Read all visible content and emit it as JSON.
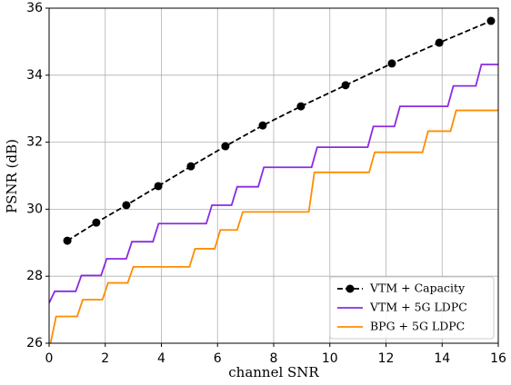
{
  "chart_data": {
    "type": "line",
    "xlabel": "channel SNR",
    "ylabel": "PSNR (dB)",
    "xlim": [
      0,
      16
    ],
    "ylim": [
      26,
      36
    ],
    "xticks": [
      0,
      2,
      4,
      6,
      8,
      10,
      12,
      14,
      16
    ],
    "yticks": [
      26,
      28,
      30,
      32,
      34,
      36
    ],
    "grid": true,
    "legend": "lower right",
    "series": [
      {
        "name": "VTM + Capacity",
        "color": "#000000",
        "linestyle": "dashed",
        "marker": "o",
        "x": [
          0.65,
          1.68,
          2.75,
          3.89,
          5.05,
          6.28,
          7.61,
          8.97,
          10.56,
          12.21,
          13.9,
          15.74
        ],
        "values": [
          29.06,
          29.6,
          30.12,
          30.69,
          31.28,
          31.88,
          32.5,
          33.07,
          33.7,
          34.35,
          34.97,
          35.62
        ]
      },
      {
        "name": "VTM + 5G LDPC",
        "color": "#8a2be2",
        "linestyle": "solid",
        "x": [
          0,
          0.2,
          0.95,
          1.15,
          1.85,
          2.05,
          2.75,
          2.95,
          3.7,
          3.9,
          5.6,
          5.8,
          6.5,
          6.7,
          7.45,
          7.65,
          9.35,
          9.55,
          11.35,
          11.55,
          12.3,
          12.5,
          14.2,
          14.4,
          15.2,
          15.4,
          16
        ],
        "values": [
          27.2,
          27.55,
          27.55,
          28.02,
          28.02,
          28.52,
          28.52,
          29.03,
          29.03,
          29.57,
          29.57,
          30.12,
          30.12,
          30.67,
          30.67,
          31.25,
          31.25,
          31.85,
          31.85,
          32.47,
          32.47,
          33.07,
          33.07,
          33.68,
          33.68,
          34.32,
          34.32
        ]
      },
      {
        "name": "BPG + 5G LDPC",
        "color": "#ff8c00",
        "linestyle": "solid",
        "x": [
          0.05,
          0.25,
          1.0,
          1.2,
          1.9,
          2.1,
          2.8,
          3.0,
          5.0,
          5.2,
          5.9,
          6.1,
          6.7,
          6.9,
          9.25,
          9.45,
          11.4,
          11.6,
          13.3,
          13.5,
          14.3,
          14.5,
          16
        ],
        "values": [
          26,
          26.8,
          26.8,
          27.3,
          27.3,
          27.8,
          27.8,
          28.28,
          28.28,
          28.82,
          28.82,
          29.38,
          29.38,
          29.92,
          29.92,
          31.1,
          31.1,
          31.7,
          31.7,
          32.33,
          32.33,
          32.95,
          32.95
        ]
      }
    ]
  }
}
